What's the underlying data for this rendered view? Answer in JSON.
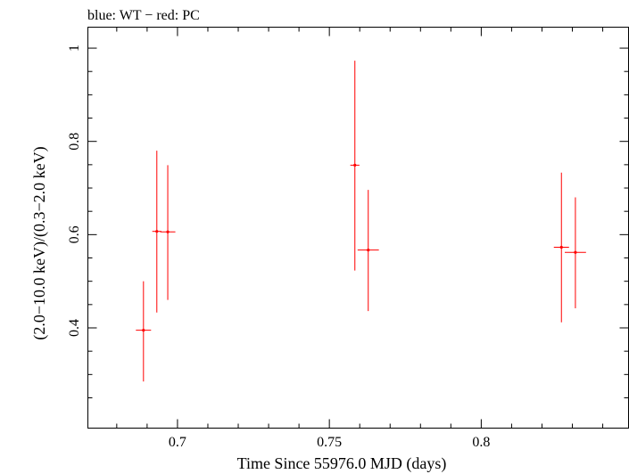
{
  "chart_data": {
    "type": "scatter",
    "title": "blue: WT − red: PC",
    "xlabel": "Time Since 55976.0 MJD (days)",
    "ylabel": "(2.0−10.0 keV)/(0.3−2.0 keV)",
    "xlim": [
      0.6705,
      0.8485
    ],
    "ylim": [
      0.185,
      1.045
    ],
    "x_ticks": [
      {
        "value": 0.7,
        "label": "0.7"
      },
      {
        "value": 0.75,
        "label": "0.75"
      },
      {
        "value": 0.8,
        "label": "0.8"
      }
    ],
    "y_ticks": [
      {
        "value": 0.4,
        "label": "0.4"
      },
      {
        "value": 0.6,
        "label": "0.6"
      },
      {
        "value": 0.8,
        "label": "0.8"
      },
      {
        "value": 1.0,
        "label": "1"
      }
    ],
    "series": [
      {
        "name": "PC",
        "color": "#ff0000",
        "points": [
          {
            "x": 0.6888,
            "xerr": 0.0025,
            "y": 0.395,
            "ylo": 0.285,
            "yhi": 0.5
          },
          {
            "x": 0.6932,
            "xerr": 0.0015,
            "y": 0.607,
            "ylo": 0.433,
            "yhi": 0.78
          },
          {
            "x": 0.6968,
            "xerr": 0.0025,
            "y": 0.606,
            "ylo": 0.46,
            "yhi": 0.749
          },
          {
            "x": 0.7584,
            "xerr": 0.0015,
            "y": 0.749,
            "ylo": 0.523,
            "yhi": 0.973
          },
          {
            "x": 0.7628,
            "xerr": 0.0035,
            "y": 0.567,
            "ylo": 0.436,
            "yhi": 0.696
          },
          {
            "x": 0.8264,
            "xerr": 0.0025,
            "y": 0.573,
            "ylo": 0.412,
            "yhi": 0.733
          },
          {
            "x": 0.831,
            "xerr": 0.0035,
            "y": 0.562,
            "ylo": 0.442,
            "yhi": 0.68
          }
        ]
      },
      {
        "name": "WT",
        "color": "#0000ff",
        "points": []
      }
    ]
  }
}
